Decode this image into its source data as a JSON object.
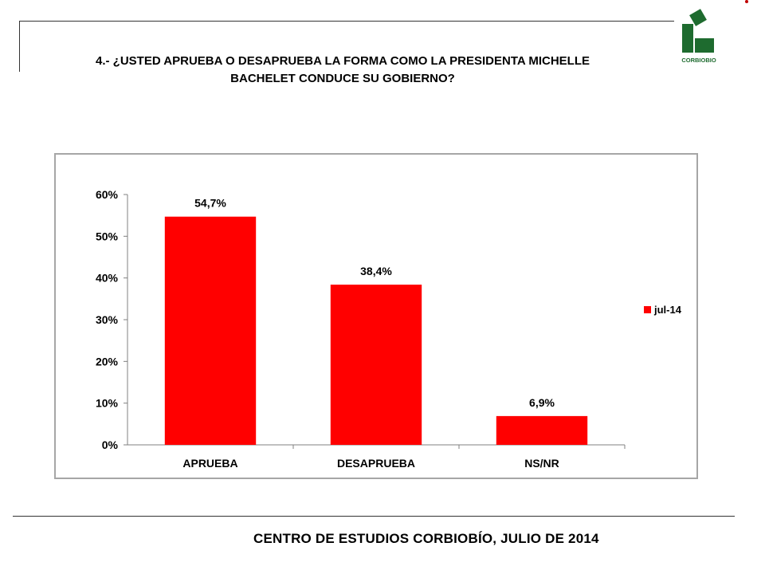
{
  "header": {
    "title_line1": "4.- ¿USTED APRUEBA O DESAPRUEBA LA FORMA COMO LA PRESIDENTA MICHELLE",
    "title_line2": "BACHELET CONDUCE SU GOBIERNO?",
    "logo_text": "CORBIOBIO",
    "logo_color": "#1e6b2f"
  },
  "chart_data": {
    "type": "bar",
    "categories": [
      "APRUEBA",
      "DESAPRUEBA",
      "NS/NR"
    ],
    "series": [
      {
        "name": "jul-14",
        "values": [
          54.7,
          38.4,
          6.9
        ],
        "color": "#ff0000"
      }
    ],
    "data_labels": [
      "54,7%",
      "38,4%",
      "6,9%"
    ],
    "y_ticks": [
      "0%",
      "10%",
      "20%",
      "30%",
      "40%",
      "50%",
      "60%"
    ],
    "ylim": [
      0,
      60
    ],
    "legend_position": "right",
    "grid": false
  },
  "footer": {
    "text": "CENTRO DE ESTUDIOS CORBIOBÍO,  JULIO DE 2014"
  }
}
